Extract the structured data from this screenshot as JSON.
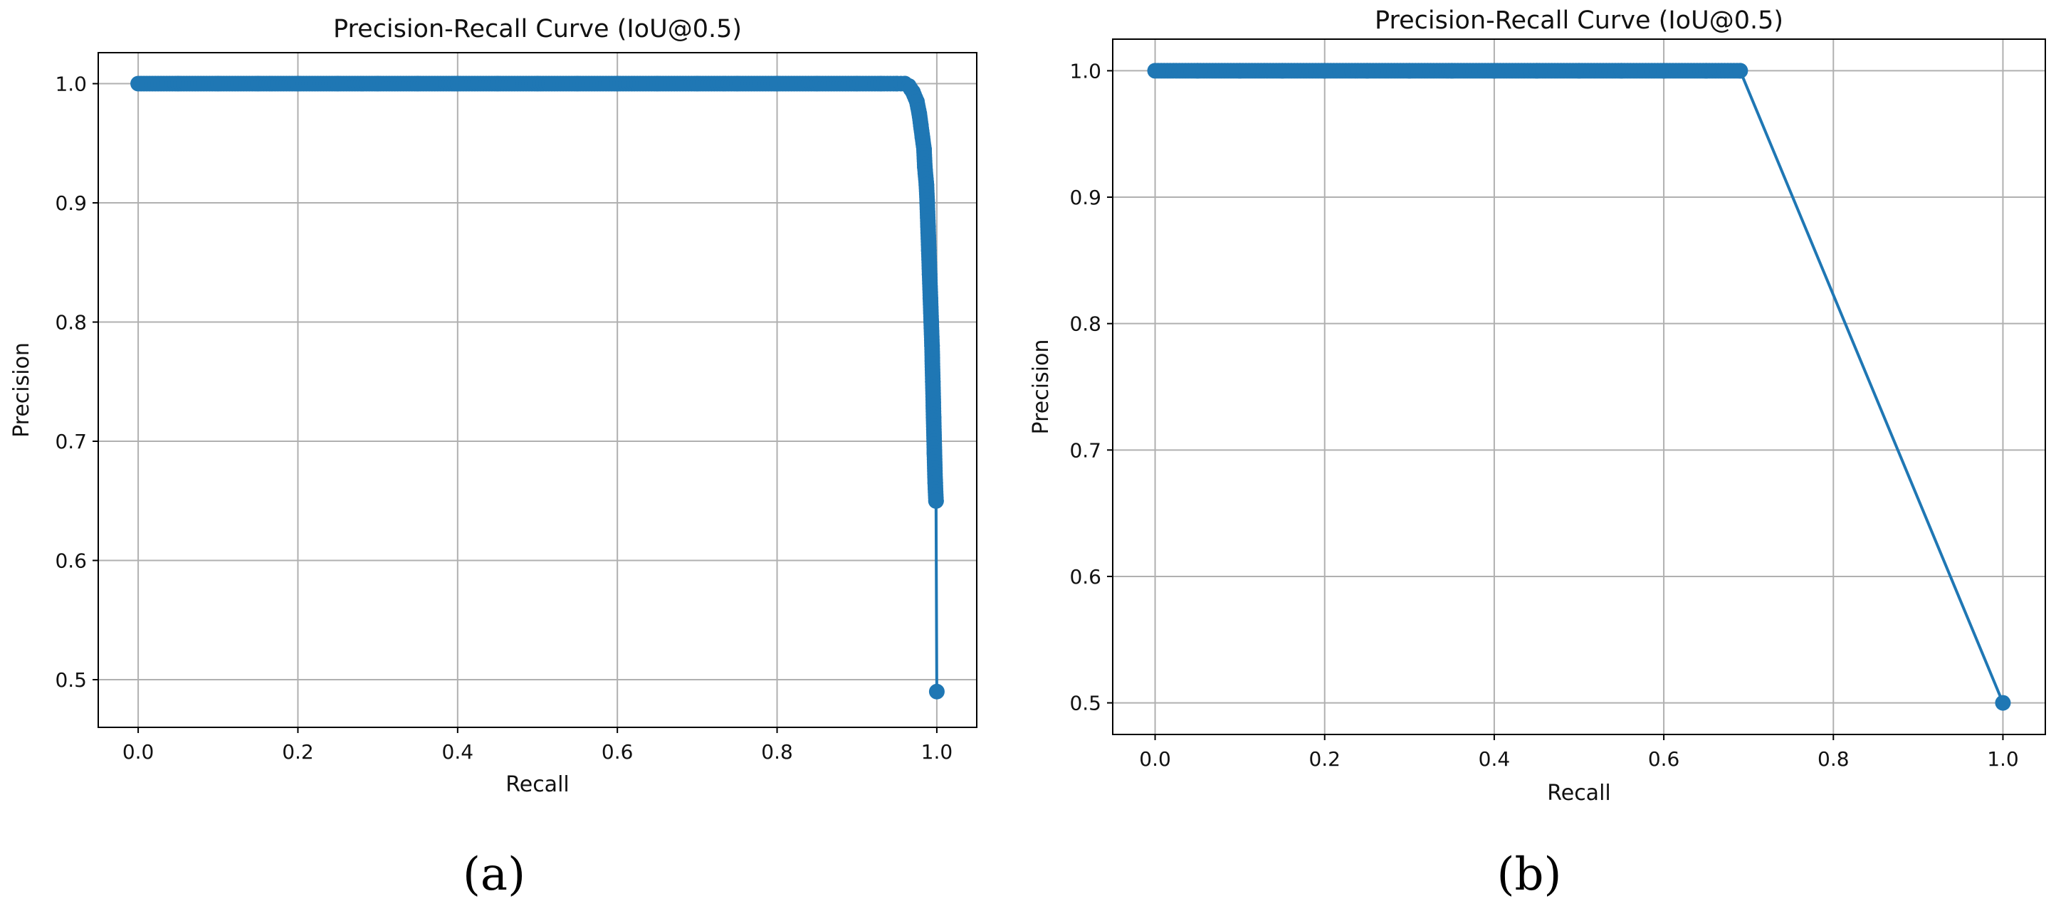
{
  "chart_data": [
    {
      "panel": "(a)",
      "type": "line",
      "title": "Precision-Recall Curve (IoU@0.5)",
      "xlabel": "Recall",
      "ylabel": "Precision",
      "xlim": [
        -0.05,
        1.05
      ],
      "ylim": [
        0.46,
        1.026
      ],
      "xticks": [
        "0.0",
        "0.2",
        "0.4",
        "0.6",
        "0.8",
        "1.0"
      ],
      "yticks": [
        "0.5",
        "0.6",
        "0.7",
        "0.8",
        "0.9",
        "1.0"
      ],
      "grid": true,
      "marker": "circle",
      "color": "#1f77b4",
      "series": [
        {
          "x": [
            0.0,
            0.05,
            0.1,
            0.15,
            0.2,
            0.25,
            0.3,
            0.35,
            0.4,
            0.45,
            0.5,
            0.55,
            0.6,
            0.65,
            0.7,
            0.75,
            0.8,
            0.85,
            0.9,
            0.93,
            0.95,
            0.96,
            0.965,
            0.97,
            0.975,
            0.978,
            0.98,
            0.982,
            0.984,
            0.985,
            0.987,
            0.988,
            0.989,
            0.99,
            0.991,
            0.992,
            0.993,
            0.994,
            0.995,
            0.996,
            0.997,
            0.998,
            0.999,
            1.0
          ],
          "y": [
            1.0,
            1.0,
            1.0,
            1.0,
            1.0,
            1.0,
            1.0,
            1.0,
            1.0,
            1.0,
            1.0,
            1.0,
            1.0,
            1.0,
            1.0,
            1.0,
            1.0,
            1.0,
            1.0,
            1.0,
            1.0,
            1.0,
            0.998,
            0.993,
            0.985,
            0.975,
            0.965,
            0.955,
            0.945,
            0.93,
            0.915,
            0.9,
            0.88,
            0.86,
            0.84,
            0.82,
            0.8,
            0.78,
            0.75,
            0.72,
            0.69,
            0.665,
            0.65,
            0.49
          ]
        }
      ]
    },
    {
      "panel": "(b)",
      "type": "line",
      "title": "Precision-Recall Curve (IoU@0.5)",
      "xlabel": "Recall",
      "ylabel": "Precision",
      "xlim": [
        -0.05,
        1.05
      ],
      "ylim": [
        0.475,
        1.025
      ],
      "xticks": [
        "0.0",
        "0.2",
        "0.4",
        "0.6",
        "0.8",
        "1.0"
      ],
      "yticks": [
        "0.5",
        "0.6",
        "0.7",
        "0.8",
        "0.9",
        "1.0"
      ],
      "grid": true,
      "marker": "circle",
      "color": "#1f77b4",
      "series": [
        {
          "x": [
            0.0,
            0.05,
            0.1,
            0.15,
            0.2,
            0.25,
            0.3,
            0.35,
            0.4,
            0.45,
            0.5,
            0.55,
            0.6,
            0.65,
            0.69,
            1.0
          ],
          "y": [
            1.0,
            1.0,
            1.0,
            1.0,
            1.0,
            1.0,
            1.0,
            1.0,
            1.0,
            1.0,
            1.0,
            1.0,
            1.0,
            1.0,
            1.0,
            0.5
          ]
        }
      ]
    }
  ]
}
